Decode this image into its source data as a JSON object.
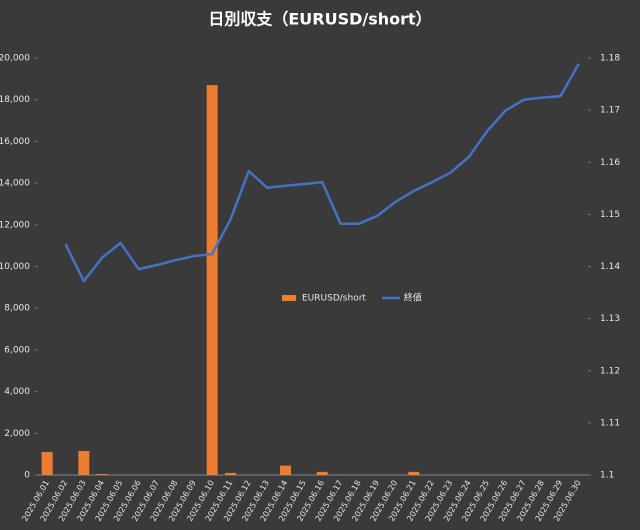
{
  "chart_data": {
    "type": "bar_line",
    "title": "日別収支（EURUSD/short）",
    "categories": [
      "2025.06.01",
      "2025.06.02",
      "2025.06.03",
      "2025.06.04",
      "2025.06.05",
      "2025.06.06",
      "2025.06.07",
      "2025.06.08",
      "2025.06.09",
      "2025.06.10",
      "2025.06.11",
      "2025.06.12",
      "2025.06.13",
      "2025.06.14",
      "2025.06.15",
      "2025.06.16",
      "2025.06.17",
      "2025.06.18",
      "2025.06.19",
      "2025.06.20",
      "2025.06.21",
      "2025.06.22",
      "2025.06.23",
      "2025.06.24",
      "2025.06.25",
      "2025.06.26",
      "2025.06.27",
      "2025.06.28",
      "2025.06.29",
      "2025.06.30"
    ],
    "series": [
      {
        "name": "EURUSD/short",
        "color": "#ed7d31",
        "type": "bar",
        "values": [
          1100,
          0,
          1150,
          50,
          0,
          0,
          0,
          0,
          0,
          18700,
          100,
          0,
          0,
          450,
          0,
          150,
          0,
          0,
          0,
          0,
          150,
          0,
          0,
          0,
          0,
          0,
          0,
          0,
          0,
          0
        ]
      },
      {
        "name": "終値",
        "color": "#4472c4",
        "type": "line",
        "axis": "y2",
        "values": [
          null,
          1.1443,
          1.1372,
          1.1417,
          1.1445,
          1.1395,
          1.1403,
          1.1412,
          1.142,
          1.1424,
          1.149,
          1.1583,
          1.1551,
          1.1555,
          1.1558,
          1.1562,
          1.1482,
          1.1482,
          1.1497,
          1.1524,
          1.1545,
          1.1562,
          1.158,
          1.161,
          1.166,
          1.1699,
          1.172,
          1.1724,
          1.1727,
          1.1789
        ]
      }
    ],
    "ylim": [
      0,
      20000
    ],
    "yticks": [
      0,
      {
        "value": 2000,
        "label": "2,000"
      },
      {
        "value": 4000,
        "label": "4,000"
      },
      {
        "value": 6000,
        "label": "6,000"
      },
      {
        "value": 8000,
        "label": "8,000"
      },
      {
        "value": 10000,
        "label": "10,000"
      },
      {
        "value": 12000,
        "label": "12,000"
      },
      {
        "value": 14000,
        "label": "14,000"
      },
      {
        "value": 16000,
        "label": "16,000"
      },
      {
        "value": 18000,
        "label": "18,000"
      },
      {
        "value": 20000,
        "label": "20,000"
      }
    ],
    "y2lim": [
      1.1,
      1.18
    ],
    "y2ticks": [
      1.1,
      1.11,
      1.12,
      1.13,
      1.14,
      1.15,
      1.16,
      1.17,
      1.18
    ],
    "legend": "center"
  }
}
